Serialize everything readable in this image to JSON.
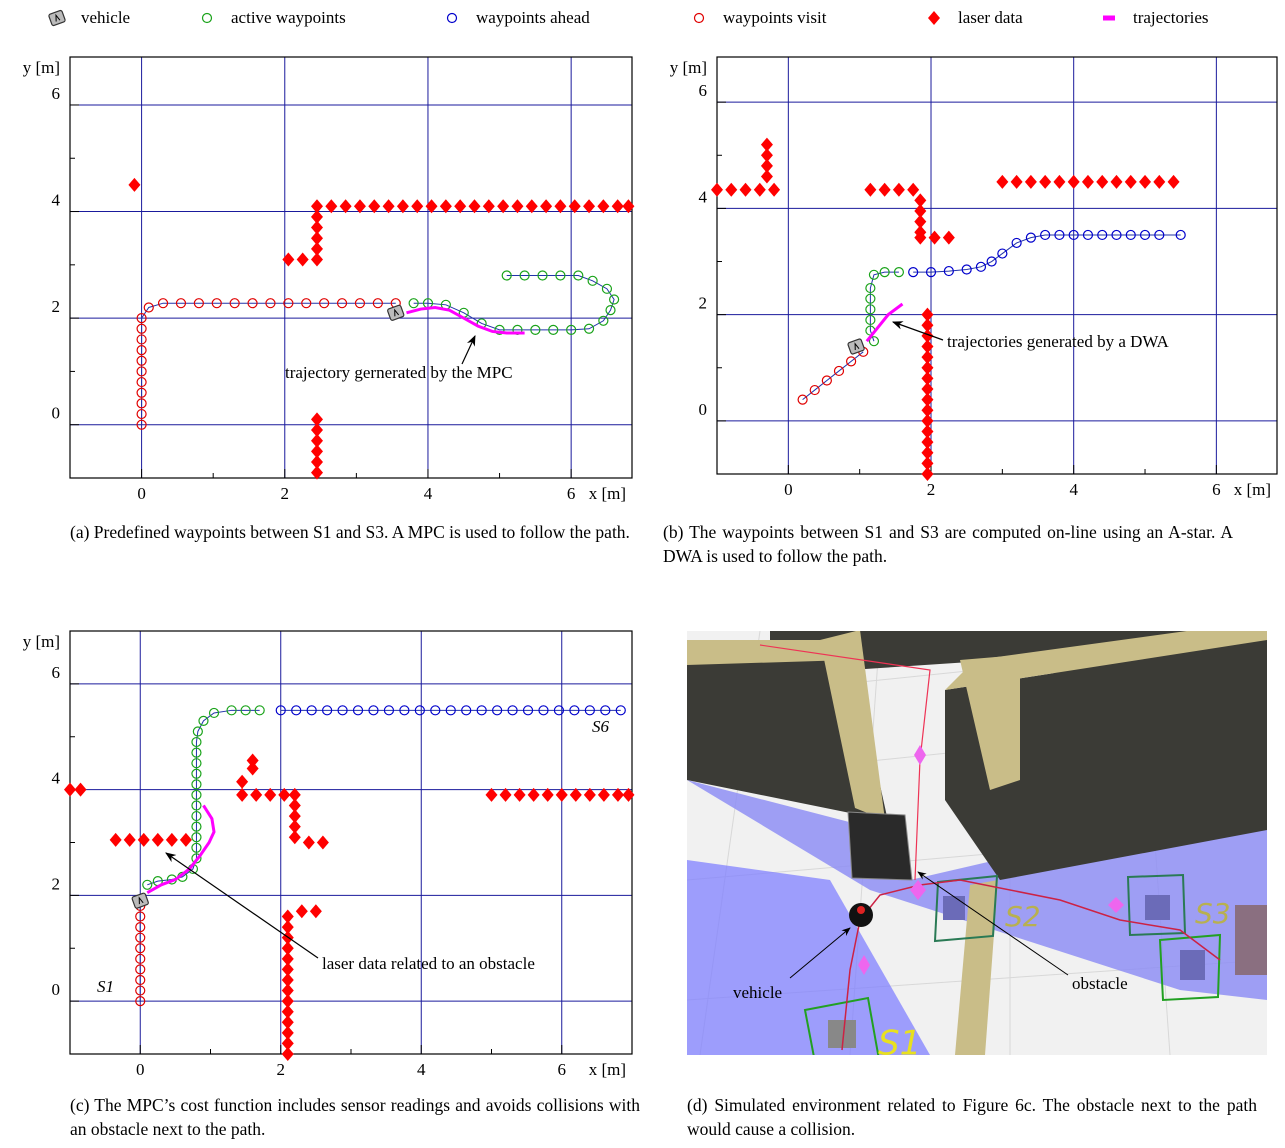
{
  "legend": [
    {
      "name": "vehicle",
      "marker": "vehicle",
      "color": "#666666"
    },
    {
      "name": "active waypoints",
      "marker": "circle",
      "color": "#1aa31a"
    },
    {
      "name": "waypoints ahead",
      "marker": "circle",
      "color": "#0000cc"
    },
    {
      "name": "waypoints visit",
      "marker": "circle",
      "color": "#e00000"
    },
    {
      "name": "laser data",
      "marker": "diamond",
      "color": "#ff0000"
    },
    {
      "name": "trajectories",
      "marker": "line",
      "color": "#ff00ff"
    }
  ],
  "chart_data": [
    {
      "type": "scatter",
      "caption": "(a) Predefined waypoints between S1 and S3. A MPC is used to follow the path.",
      "xlabel": "x [m]",
      "ylabel": "y [m]",
      "xlim": [
        -1,
        6.85
      ],
      "ylim": [
        -1,
        6.9
      ],
      "xticks": [
        0,
        2,
        4,
        6
      ],
      "yticks": [
        0,
        2,
        4,
        6
      ],
      "xminor": [
        1,
        3,
        5
      ],
      "yminor": [
        1,
        3,
        5
      ],
      "grid": true,
      "grid_color": "#1a1a9c",
      "annotations": [
        {
          "text": "trajectory gernerated by the MPC"
        }
      ],
      "series": [
        {
          "name": "laser data",
          "x": [
            -0.1,
            2.45,
            2.45,
            2.45,
            2.45,
            2.45,
            2.45,
            2.05,
            2.25,
            2.45,
            2.45,
            2.45,
            2.45,
            2.45,
            2.45,
            2.65,
            2.85,
            3.05,
            3.25,
            3.45,
            3.65,
            3.85,
            4.05,
            4.25,
            4.45,
            4.65,
            4.85,
            5.05,
            5.25,
            5.45,
            5.65,
            5.85,
            6.05,
            6.25,
            6.45,
            6.65,
            6.8
          ],
          "values": [
            4.5,
            -0.9,
            -0.7,
            -0.5,
            -0.3,
            -0.1,
            0.1,
            3.1,
            3.1,
            3.1,
            3.3,
            3.5,
            3.7,
            3.9,
            4.1,
            4.1,
            4.1,
            4.1,
            4.1,
            4.1,
            4.1,
            4.1,
            4.1,
            4.1,
            4.1,
            4.1,
            4.1,
            4.1,
            4.1,
            4.1,
            4.1,
            4.1,
            4.1,
            4.1,
            4.1,
            4.1,
            4.1
          ]
        },
        {
          "name": "waypoints visit",
          "x": [
            0,
            0,
            0,
            0,
            0,
            0,
            0,
            0,
            0,
            0,
            0,
            0.1,
            0.3,
            0.55,
            0.8,
            1.05,
            1.3,
            1.55,
            1.8,
            2.05,
            2.3,
            2.55,
            2.8,
            3.05,
            3.3,
            3.55
          ],
          "values": [
            0,
            0.2,
            0.4,
            0.6,
            0.8,
            1.0,
            1.2,
            1.4,
            1.6,
            1.8,
            2.0,
            2.2,
            2.28,
            2.28,
            2.28,
            2.28,
            2.28,
            2.28,
            2.28,
            2.28,
            2.28,
            2.28,
            2.28,
            2.28,
            2.28,
            2.28
          ]
        },
        {
          "name": "active waypoints",
          "x": [
            3.8,
            4.0,
            4.25,
            4.5,
            4.75,
            5.0,
            5.25,
            5.5,
            5.75,
            6.0,
            6.25,
            6.45,
            6.55,
            6.6,
            6.5,
            6.3,
            6.1,
            5.85,
            5.6,
            5.35,
            5.1
          ],
          "values": [
            2.28,
            2.28,
            2.25,
            2.1,
            1.9,
            1.78,
            1.78,
            1.78,
            1.78,
            1.78,
            1.8,
            1.95,
            2.15,
            2.35,
            2.55,
            2.7,
            2.8,
            2.8,
            2.8,
            2.8,
            2.8
          ]
        },
        {
          "name": "trajectories",
          "x": [
            3.7,
            3.9,
            4.1,
            4.3,
            4.5,
            4.7,
            4.9,
            5.1,
            5.35
          ],
          "values": [
            2.1,
            2.17,
            2.2,
            2.15,
            2.0,
            1.85,
            1.75,
            1.72,
            1.72
          ]
        },
        {
          "name": "vehicle",
          "x": [
            3.55
          ],
          "values": [
            2.1
          ]
        }
      ]
    },
    {
      "type": "scatter",
      "caption": "(b) The waypoints between S1 and S3 are computed on-line using an A-star. A DWA is used to follow the path.",
      "xlabel": "x [m]",
      "ylabel": "y [m]",
      "xlim": [
        -1,
        6.85
      ],
      "ylim": [
        -1,
        6.85
      ],
      "xticks": [
        0,
        2,
        4,
        6
      ],
      "yticks": [
        0,
        2,
        4,
        6
      ],
      "xminor": [
        1,
        3,
        5
      ],
      "yminor": [
        1,
        3,
        5
      ],
      "grid": true,
      "grid_color": "#1a1a9c",
      "annotations": [
        {
          "text": "trajectories generated by a DWA"
        }
      ],
      "series": [
        {
          "name": "laser data",
          "x": [
            -1.0,
            -0.8,
            -0.6,
            -0.4,
            -0.2,
            -0.3,
            -0.3,
            -0.3,
            -0.3,
            1.15,
            1.35,
            1.55,
            1.75,
            1.85,
            1.85,
            1.85,
            1.85,
            1.85,
            2.05,
            2.25,
            1.95,
            1.95,
            1.95,
            1.95,
            1.95,
            1.95,
            1.95,
            1.95,
            1.95,
            1.95,
            1.95,
            1.95,
            1.95,
            1.95,
            1.95,
            1.95,
            3.0,
            3.2,
            3.4,
            3.6,
            3.8,
            4.0,
            4.2,
            4.4,
            4.6,
            4.8,
            5.0,
            5.2,
            5.4
          ],
          "values": [
            4.35,
            4.35,
            4.35,
            4.35,
            4.35,
            4.6,
            4.8,
            5.0,
            5.2,
            4.35,
            4.35,
            4.35,
            4.35,
            4.15,
            3.95,
            3.75,
            3.55,
            3.45,
            3.45,
            3.45,
            -1.0,
            -0.8,
            -0.6,
            -0.4,
            -0.2,
            0,
            0.2,
            0.4,
            0.6,
            0.8,
            1.0,
            1.2,
            1.4,
            1.6,
            1.8,
            2.0,
            4.5,
            4.5,
            4.5,
            4.5,
            4.5,
            4.5,
            4.5,
            4.5,
            4.5,
            4.5,
            4.5,
            4.5,
            4.5
          ]
        },
        {
          "name": "waypoints visit",
          "x": [
            0.2,
            0.37,
            0.54,
            0.71,
            0.88,
            1.05
          ],
          "values": [
            0.4,
            0.58,
            0.76,
            0.94,
            1.12,
            1.3
          ]
        },
        {
          "name": "active waypoints",
          "x": [
            1.2,
            1.15,
            1.15,
            1.15,
            1.15,
            1.15,
            1.2,
            1.35,
            1.55
          ],
          "values": [
            1.5,
            1.7,
            1.9,
            2.1,
            2.3,
            2.5,
            2.75,
            2.8,
            2.8
          ]
        },
        {
          "name": "waypoints ahead",
          "x": [
            1.75,
            2.0,
            2.25,
            2.5,
            2.7,
            2.85,
            3.0,
            3.2,
            3.4,
            3.6,
            3.8,
            4.0,
            4.2,
            4.4,
            4.6,
            4.8,
            5.0,
            5.2,
            5.5
          ],
          "values": [
            2.8,
            2.8,
            2.82,
            2.85,
            2.9,
            3.0,
            3.15,
            3.35,
            3.45,
            3.5,
            3.5,
            3.5,
            3.5,
            3.5,
            3.5,
            3.5,
            3.5,
            3.5,
            3.5
          ]
        },
        {
          "name": "trajectories",
          "x": [
            1.1,
            1.25,
            1.4,
            1.6
          ],
          "values": [
            1.5,
            1.75,
            2.0,
            2.2
          ]
        },
        {
          "name": "vehicle",
          "x": [
            0.95
          ],
          "values": [
            1.4
          ]
        }
      ]
    },
    {
      "type": "scatter",
      "caption": "(c) The MPC’s cost function includes sensor readings and avoids collisions with an obstacle next to the path.",
      "xlabel": "x [m]",
      "ylabel": "y [m]",
      "xlim": [
        -1,
        7
      ],
      "ylim": [
        -1,
        7
      ],
      "xticks": [
        0,
        2,
        4,
        6
      ],
      "yticks": [
        0,
        2,
        4,
        6
      ],
      "xminor": [
        1,
        3,
        5
      ],
      "yminor": [
        1,
        3,
        5
      ],
      "grid": true,
      "grid_color": "#1a1a9c",
      "annotations": [
        {
          "text": "laser data related to an obstacle"
        },
        {
          "text": "S6"
        },
        {
          "text": "S1"
        }
      ],
      "series": [
        {
          "name": "laser data",
          "x": [
            -1.0,
            -0.85,
            -0.35,
            -0.15,
            0.05,
            0.25,
            0.45,
            0.65,
            1.6,
            1.6,
            1.45,
            1.45,
            1.65,
            1.85,
            2.05,
            2.2,
            2.2,
            2.2,
            2.2,
            2.2,
            2.4,
            2.6,
            2.1,
            2.1,
            2.1,
            2.1,
            2.1,
            2.1,
            2.1,
            2.1,
            2.1,
            2.1,
            2.1,
            2.1,
            2.1,
            2.1,
            2.3,
            2.5,
            5.0,
            5.2,
            5.4,
            5.6,
            5.8,
            6.0,
            6.2,
            6.4,
            6.6,
            6.8,
            6.95
          ],
          "values": [
            4.0,
            4.0,
            3.05,
            3.05,
            3.05,
            3.05,
            3.05,
            3.05,
            4.4,
            4.55,
            4.15,
            3.9,
            3.9,
            3.9,
            3.9,
            3.9,
            3.7,
            3.5,
            3.3,
            3.1,
            3.0,
            3.0,
            -1.0,
            -0.8,
            -0.6,
            -0.4,
            -0.2,
            0,
            0.2,
            0.4,
            0.6,
            0.8,
            1.0,
            1.2,
            1.4,
            1.6,
            1.7,
            1.7,
            3.9,
            3.9,
            3.9,
            3.9,
            3.9,
            3.9,
            3.9,
            3.9,
            3.9,
            3.9,
            3.9
          ]
        },
        {
          "name": "waypoints visit",
          "x": [
            0,
            0,
            0,
            0,
            0,
            0,
            0,
            0,
            0,
            0
          ],
          "values": [
            0,
            0.2,
            0.4,
            0.6,
            0.8,
            1.0,
            1.2,
            1.4,
            1.6,
            1.8
          ]
        },
        {
          "name": "active waypoints",
          "x": [
            0.1,
            0.25,
            0.45,
            0.6,
            0.75,
            0.8,
            0.8,
            0.8,
            0.8,
            0.8,
            0.8,
            0.8,
            0.8,
            0.8,
            0.8,
            0.8,
            0.8,
            0.82,
            0.9,
            1.05,
            1.3,
            1.5,
            1.7
          ],
          "values": [
            2.2,
            2.27,
            2.3,
            2.35,
            2.5,
            2.7,
            2.9,
            3.1,
            3.3,
            3.5,
            3.7,
            3.9,
            4.1,
            4.3,
            4.5,
            4.7,
            4.9,
            5.1,
            5.3,
            5.45,
            5.5,
            5.5,
            5.5
          ]
        },
        {
          "name": "waypoints ahead",
          "x": [
            2.0,
            2.22,
            2.44,
            2.66,
            2.88,
            3.1,
            3.32,
            3.54,
            3.76,
            3.98,
            4.2,
            4.42,
            4.64,
            4.86,
            5.08,
            5.3,
            5.52,
            5.74,
            5.96,
            6.18,
            6.4,
            6.62,
            6.84
          ],
          "values": [
            5.5,
            5.5,
            5.5,
            5.5,
            5.5,
            5.5,
            5.5,
            5.5,
            5.5,
            5.5,
            5.5,
            5.5,
            5.5,
            5.5,
            5.5,
            5.5,
            5.5,
            5.5,
            5.5,
            5.5,
            5.5,
            5.5,
            5.5
          ]
        },
        {
          "name": "trajectories",
          "x": [
            0.1,
            0.3,
            0.5,
            0.7,
            0.85,
            0.98,
            1.05,
            1.02,
            0.9
          ],
          "values": [
            2.05,
            2.2,
            2.3,
            2.5,
            2.75,
            3.0,
            3.2,
            3.45,
            3.7
          ]
        },
        {
          "name": "vehicle",
          "x": [
            0
          ],
          "values": [
            1.9
          ]
        }
      ]
    }
  ],
  "panel_d": {
    "caption": "(d) Simulated environment related to Figure 6c. The obstacle next to the path would cause a collision.",
    "annotations": [
      "vehicle",
      "obstacle"
    ],
    "waypoint_labels": [
      "S1",
      "S2",
      "S3"
    ]
  }
}
